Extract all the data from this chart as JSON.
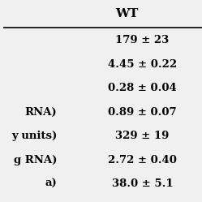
{
  "header": "WT",
  "left_labels": [
    "",
    "",
    "",
    "RNA)",
    "y units)",
    "g RNA)",
    "a)"
  ],
  "right_values": [
    "179 ± 23",
    "4.45 ± 0.22",
    "0.28 ± 0.04",
    "0.89 ± 0.07",
    "329 ± 19",
    "2.72 ± 0.40",
    "38.0 ± 5.1"
  ],
  "bg_color": "#f0f0f0",
  "font_size": 9.5,
  "header_font_size": 11
}
